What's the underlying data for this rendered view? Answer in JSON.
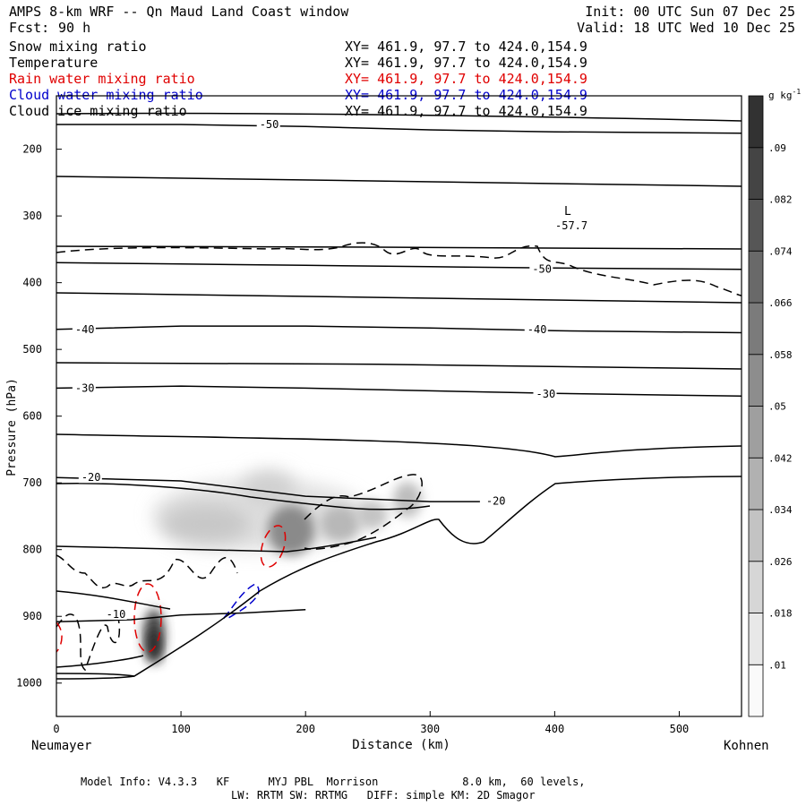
{
  "header": {
    "title": "AMPS 8-km WRF -- Qn Maud Land Coast window",
    "fcst_label": "Fcst:",
    "fcst_value": "90 h",
    "init": "Init: 00 UTC Sun 07 Dec 25",
    "valid": "Valid: 18 UTC Wed 10 Dec 25"
  },
  "legend": [
    {
      "label": "Snow mixing ratio",
      "coords": "XY= 461.9, 97.7 to 424.0,154.9",
      "color": "#000000"
    },
    {
      "label": "Temperature",
      "coords": "XY= 461.9, 97.7 to 424.0,154.9",
      "color": "#000000"
    },
    {
      "label": "Rain water mixing ratio",
      "coords": "XY= 461.9, 97.7 to 424.0,154.9",
      "color": "#e00000"
    },
    {
      "label": "Cloud water mixing ratio",
      "coords": "XY= 461.9, 97.7 to 424.0,154.9",
      "color": "#0000cc"
    },
    {
      "label": "Cloud ice mixing ratio",
      "coords": "XY= 461.9, 97.7 to 424.0,154.9",
      "color": "#000000"
    }
  ],
  "chart_data": {
    "type": "cross-section",
    "xlabel": "Distance (km)",
    "ylabel": "Pressure (hPa)",
    "xlim": [
      0,
      550
    ],
    "ylim": [
      1050,
      120
    ],
    "xticks": [
      0,
      100,
      200,
      300,
      400,
      500
    ],
    "yticks": [
      200,
      300,
      400,
      500,
      600,
      700,
      800,
      900,
      1000
    ],
    "x_left_label": "Neumayer",
    "x_right_label": "Kohnen",
    "low_marker": {
      "label": "L",
      "value": "-57.7",
      "x": 405,
      "p": 303
    },
    "colorbar": {
      "unit": "g kg",
      "unit_exp": "-1",
      "ticks": [
        ".01",
        ".018",
        ".026",
        ".034",
        ".042",
        ".05",
        ".058",
        ".066",
        ".074",
        ".082",
        ".09"
      ]
    },
    "temperature_contours": [
      {
        "label": "-50",
        "label_x": 163,
        "label_p": 163,
        "points": [
          [
            0,
            163
          ],
          [
            100,
            163
          ],
          [
            200,
            166
          ],
          [
            300,
            171
          ],
          [
            400,
            174
          ],
          [
            550,
            176
          ]
        ]
      },
      {
        "label": "-50",
        "label_x": 382,
        "label_p": 380,
        "points": [
          [
            0,
            370
          ],
          [
            100,
            372
          ],
          [
            200,
            374
          ],
          [
            300,
            376
          ],
          [
            400,
            378
          ],
          [
            550,
            380
          ]
        ]
      },
      {
        "label": "-40",
        "label_x": 15,
        "label_p": 470,
        "points": [
          [
            0,
            470
          ],
          [
            100,
            465
          ],
          [
            200,
            465
          ],
          [
            300,
            468
          ],
          [
            400,
            472
          ],
          [
            550,
            475
          ]
        ]
      },
      {
        "label": "-40",
        "label_x": 378,
        "label_p": 470,
        "points": []
      },
      {
        "label": "-30",
        "label_x": 15,
        "label_p": 558,
        "points": [
          [
            0,
            558
          ],
          [
            100,
            555
          ],
          [
            200,
            558
          ],
          [
            300,
            562
          ],
          [
            400,
            566
          ],
          [
            550,
            570
          ]
        ]
      },
      {
        "label": "-30",
        "label_x": 385,
        "label_p": 567,
        "points": []
      },
      {
        "label": "-20",
        "label_x": 20,
        "label_p": 692,
        "points": [
          [
            0,
            692
          ],
          [
            100,
            697
          ],
          [
            200,
            720
          ],
          [
            300,
            728
          ],
          [
            340,
            728
          ]
        ]
      },
      {
        "label": "-20",
        "label_x": 345,
        "label_p": 727,
        "points": []
      },
      {
        "label": "-10",
        "label_x": 40,
        "label_p": 897,
        "points": [
          [
            0,
            908
          ],
          [
            60,
            905
          ],
          [
            100,
            898
          ],
          [
            150,
            895
          ],
          [
            200,
            890
          ]
        ]
      }
    ],
    "annotations": [
      "-50",
      "-50",
      "-40",
      "-40",
      "-30",
      "-30",
      "-20",
      "-20",
      "-10"
    ]
  },
  "footer": {
    "line1": "Model Info: V4.3.3   KF      MYJ PBL  Morrison             8.0 km,  60 levels,",
    "line2": "LW: RRTM SW: RRTMG   DIFF: simple KM: 2D Smagor"
  }
}
